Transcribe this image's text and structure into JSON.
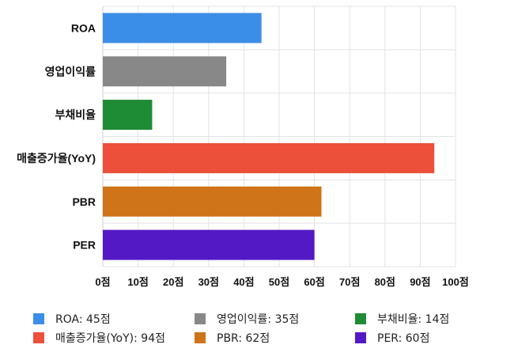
{
  "chart_data": {
    "type": "bar",
    "orientation": "horizontal",
    "categories": [
      "ROA",
      "영업이익률",
      "부채비율",
      "매출증가율(YoY)",
      "PBR",
      "PER"
    ],
    "values": [
      45,
      35,
      14,
      94,
      62,
      60
    ],
    "colors": [
      "#3b8ee8",
      "#888888",
      "#1e8c35",
      "#ec4f3a",
      "#cf7418",
      "#5219c4"
    ],
    "x_ticks": [
      "0점",
      "10점",
      "20점",
      "30점",
      "40점",
      "50점",
      "60점",
      "70점",
      "80점",
      "90점",
      "100점"
    ],
    "xlim": [
      0,
      100
    ],
    "grid": true,
    "legend_position": "bottom",
    "legend": [
      {
        "label": "ROA: 45점",
        "color": "#3b8ee8"
      },
      {
        "label": "영업이익률: 35점",
        "color": "#888888"
      },
      {
        "label": "부채비율: 14점",
        "color": "#1e8c35"
      },
      {
        "label": "매출증가율(YoY): 94점",
        "color": "#ec4f3a"
      },
      {
        "label": "PBR: 62점",
        "color": "#cf7418"
      },
      {
        "label": "PER: 60점",
        "color": "#5219c4"
      }
    ]
  }
}
